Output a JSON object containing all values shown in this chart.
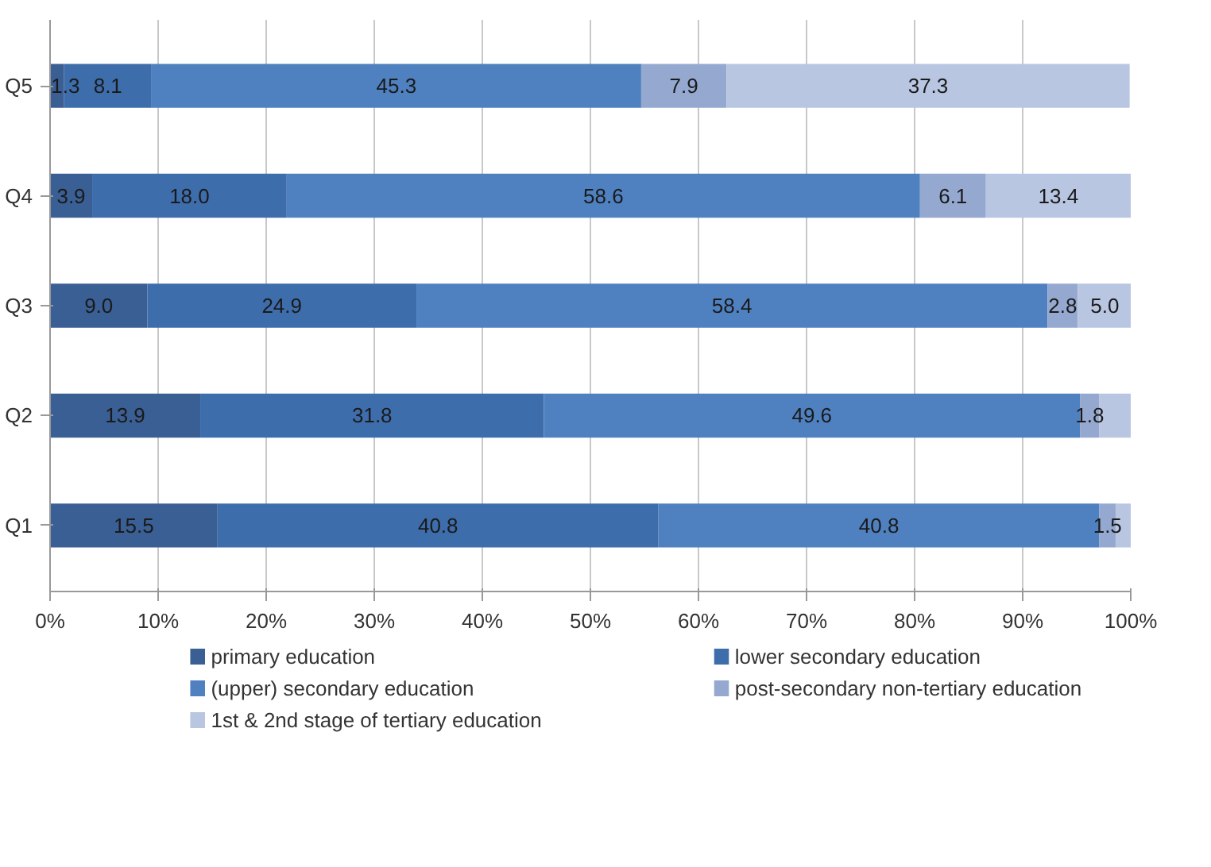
{
  "chart_data": {
    "type": "bar",
    "orientation": "horizontal",
    "stacked": true,
    "categories": [
      "Q5",
      "Q4",
      "Q3",
      "Q2",
      "Q1"
    ],
    "series": [
      {
        "name": "primary education",
        "color": "#3a5f94",
        "values": [
          1.3,
          3.9,
          9.0,
          13.9,
          15.5
        ],
        "value_labels": [
          "1.3",
          "3.9",
          "9.0",
          "13.9",
          "15.5"
        ]
      },
      {
        "name": "lower secondary education",
        "color": "#3e6dac",
        "values": [
          8.1,
          18.0,
          24.9,
          31.8,
          40.8
        ],
        "value_labels": [
          "8.1",
          "18.0",
          "24.9",
          "31.8",
          "40.8"
        ]
      },
      {
        "name": "(upper) secondary education",
        "color": "#4f81c0",
        "values": [
          45.3,
          58.6,
          58.4,
          49.6,
          40.8
        ],
        "value_labels": [
          "45.3",
          "58.6",
          "58.4",
          "49.6",
          "40.8"
        ]
      },
      {
        "name": "post-secondary non-tertiary education",
        "color": "#95a9d0",
        "values": [
          7.9,
          6.1,
          2.8,
          1.8,
          1.5
        ],
        "value_labels": [
          "7.9",
          "6.1",
          "2.8",
          "1.8",
          "1.5"
        ]
      },
      {
        "name": "1st & 2nd stage of tertiary education",
        "color": "#b9c6e2",
        "values": [
          37.3,
          13.4,
          5.0,
          2.9,
          1.4
        ],
        "value_labels": [
          "37.3",
          "13.4",
          "5.0",
          null,
          null
        ]
      }
    ],
    "xlim": [
      0,
      100
    ],
    "xticks": [
      {
        "value": 0,
        "label": "0%"
      },
      {
        "value": 10,
        "label": "10%"
      },
      {
        "value": 20,
        "label": "20%"
      },
      {
        "value": 30,
        "label": "30%"
      },
      {
        "value": 40,
        "label": "40%"
      },
      {
        "value": 50,
        "label": "50%"
      },
      {
        "value": 60,
        "label": "60%"
      },
      {
        "value": 70,
        "label": "70%"
      },
      {
        "value": 80,
        "label": "80%"
      },
      {
        "value": 90,
        "label": "90%"
      },
      {
        "value": 100,
        "label": "100%"
      }
    ],
    "grid": "x",
    "legend": "bottom"
  }
}
